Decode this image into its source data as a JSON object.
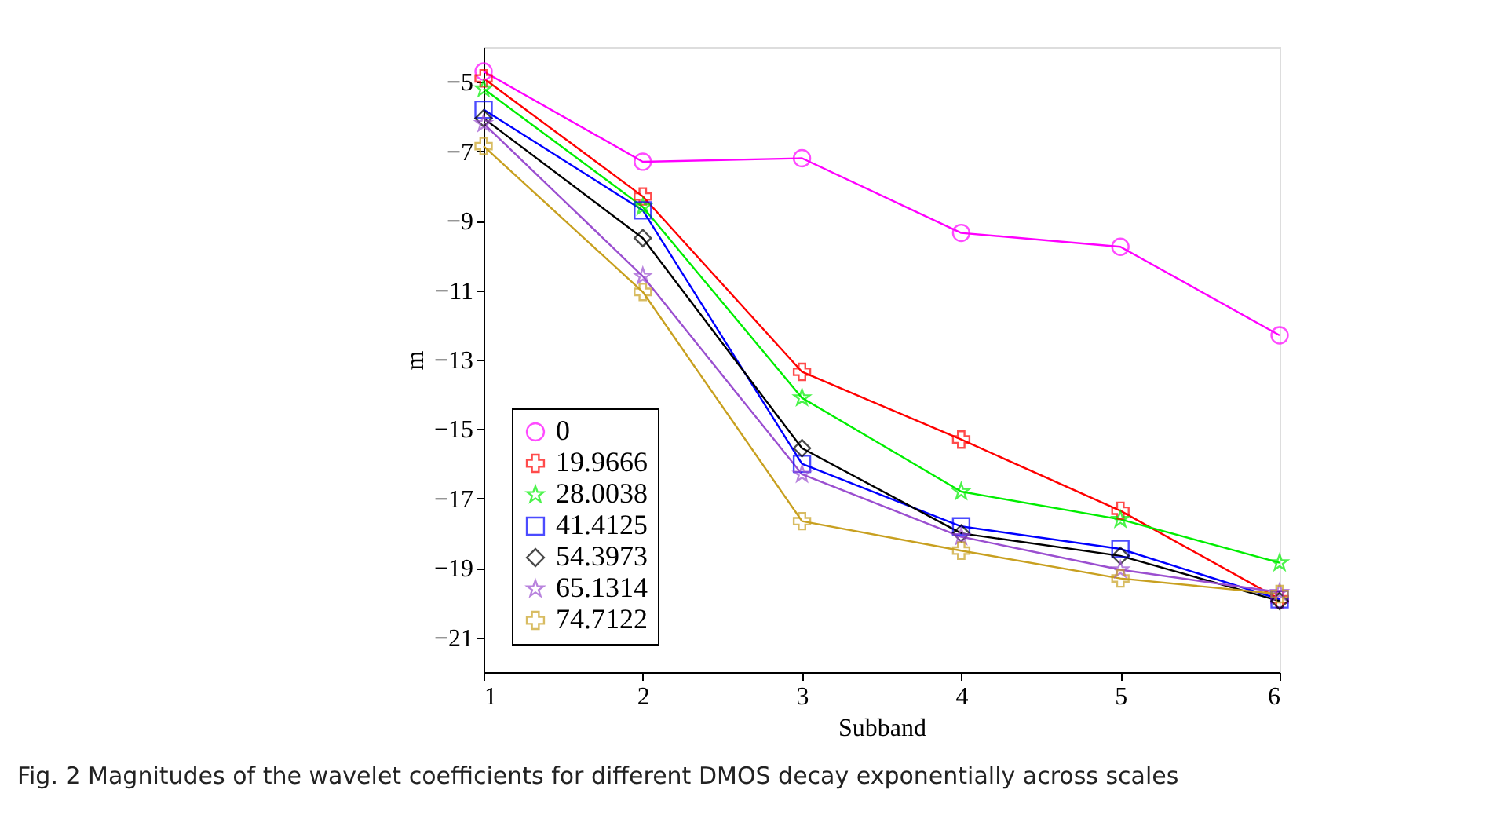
{
  "chart_data": {
    "type": "line",
    "xlabel": "Subband",
    "ylabel": "m",
    "x": [
      1,
      2,
      3,
      4,
      5,
      6
    ],
    "xlim": [
      1,
      6
    ],
    "xticks": [
      1,
      2,
      3,
      4,
      5,
      6
    ],
    "ylim": [
      -22,
      -4
    ],
    "yticks": [
      -5,
      -7,
      -9,
      -11,
      -13,
      -15,
      -17,
      -19,
      -21
    ],
    "grid": false,
    "legend": "bottom left",
    "series": [
      {
        "name": "0",
        "color": "#ff00ff",
        "marker": "circle",
        "values": [
          -4.7,
          -7.3,
          -7.2,
          -9.35,
          -9.75,
          -12.3
        ]
      },
      {
        "name": "19.9666",
        "color": "#ff0000",
        "marker": "cross",
        "values": [
          -4.9,
          -8.3,
          -13.35,
          -15.3,
          -17.35,
          -19.9
        ]
      },
      {
        "name": "28.0038",
        "color": "#00ee00",
        "marker": "star",
        "values": [
          -5.2,
          -8.6,
          -14.1,
          -16.8,
          -17.6,
          -18.85
        ]
      },
      {
        "name": "41.4125",
        "color": "#0000ff",
        "marker": "square",
        "values": [
          -5.8,
          -8.7,
          -16.0,
          -17.8,
          -18.45,
          -19.9
        ]
      },
      {
        "name": "54.3973",
        "color": "#000000",
        "marker": "diamond",
        "values": [
          -6.05,
          -9.5,
          -15.55,
          -18.0,
          -18.65,
          -19.95
        ]
      },
      {
        "name": "65.1314",
        "color": "#9b4fd0",
        "marker": "star",
        "values": [
          -6.2,
          -10.6,
          -16.3,
          -18.1,
          -19.05,
          -19.7
        ]
      },
      {
        "name": "74.7122",
        "color": "#c8a020",
        "marker": "cross",
        "values": [
          -6.85,
          -11.05,
          -17.65,
          -18.5,
          -19.3,
          -19.75
        ]
      }
    ],
    "annotations": [
      "Fig. 2 Magnitudes of the wavelet coefficients for different DMOS decay exponentially across scales"
    ]
  }
}
